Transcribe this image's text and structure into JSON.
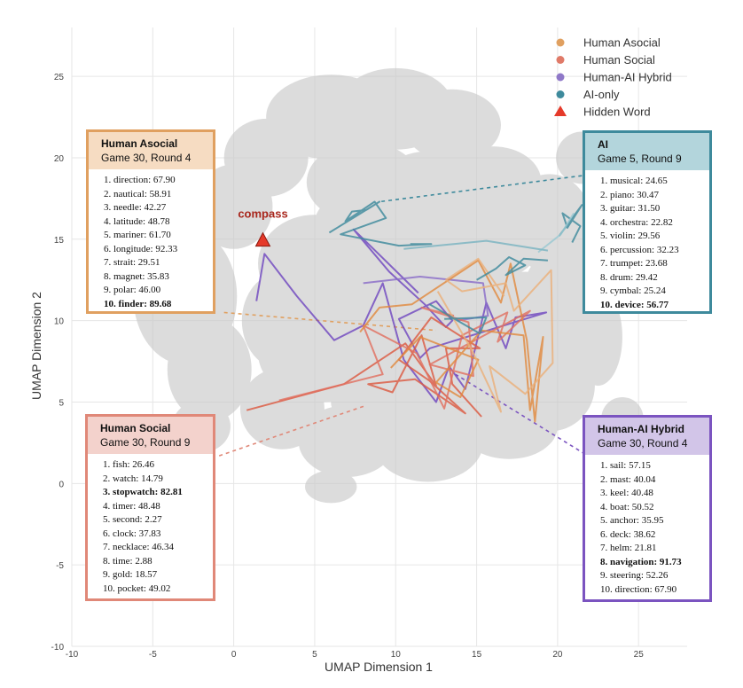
{
  "chart_data": {
    "type": "line",
    "xlabel": "UMAP Dimension 1",
    "ylabel": "UMAP Dimension 2",
    "xlim": [
      -10,
      28
    ],
    "ylim": [
      -10,
      28
    ],
    "x_ticks": [
      -10,
      -5,
      0,
      5,
      10,
      15,
      20,
      25
    ],
    "y_ticks": [
      -10,
      -5,
      0,
      5,
      10,
      15,
      20,
      25
    ],
    "grid": true,
    "legend_position": "top-right",
    "legend": [
      {
        "label": "Human Asocial",
        "color": "#e0a060",
        "marker": "circle"
      },
      {
        "label": "Human Social",
        "color": "#e07a68",
        "marker": "circle"
      },
      {
        "label": "Human-AI Hybrid",
        "color": "#8f78c8",
        "marker": "circle"
      },
      {
        "label": "AI-only",
        "color": "#3e8a9c",
        "marker": "circle"
      },
      {
        "label": "Hidden Word",
        "color": "#e53a2a",
        "marker": "triangle"
      }
    ],
    "hidden_word": {
      "label": "compass",
      "x": 1.8,
      "y": 14.9
    },
    "series": [
      {
        "group": "hybrid",
        "color": "#7048c0",
        "points": [
          [
            1.4,
            11.2
          ],
          [
            1.9,
            14.1
          ],
          [
            3.9,
            11.5
          ],
          [
            6.2,
            8.8
          ],
          [
            8,
            9.7
          ],
          [
            9.2,
            12.3
          ],
          [
            10.5,
            7.6
          ],
          [
            12.5,
            5
          ],
          [
            13.3,
            7.2
          ],
          [
            14.3,
            5.8
          ],
          [
            15.6,
            11.1
          ],
          [
            16.8,
            8.3
          ],
          [
            17.4,
            10.2
          ],
          [
            19.3,
            10.5
          ],
          [
            12.1,
            8.3
          ],
          [
            11.5,
            7.7
          ],
          [
            10.2,
            10.1
          ],
          [
            12.5,
            11.2
          ],
          [
            13.5,
            10
          ],
          [
            13.1,
            9.6
          ],
          [
            11.8,
            11
          ],
          [
            9.6,
            13
          ],
          [
            7.4,
            15.6
          ],
          [
            11.4,
            11.7
          ]
        ]
      },
      {
        "group": "hybrid",
        "color": "#8a6cc8",
        "points": [
          [
            8,
            12.3
          ],
          [
            11.5,
            12.7
          ],
          [
            15.4,
            12.3
          ],
          [
            15.7,
            10.3
          ],
          [
            13.8,
            10
          ]
        ]
      },
      {
        "group": "social",
        "color": "#dc5a42",
        "points": [
          [
            0.8,
            4.5
          ],
          [
            6.8,
            6.1
          ],
          [
            10.6,
            8.6
          ],
          [
            12.5,
            6
          ],
          [
            11.6,
            9.1
          ],
          [
            9.8,
            5.6
          ],
          [
            8.3,
            6.1
          ],
          [
            11.2,
            6.4
          ],
          [
            14.3,
            4.3
          ],
          [
            12.1,
            6.3
          ],
          [
            10.2,
            7.6
          ],
          [
            12.2,
            10.2
          ],
          [
            15.2,
            8.3
          ],
          [
            13.1,
            8.3
          ],
          [
            13.5,
            6.1
          ],
          [
            15.3,
            4.1
          ]
        ]
      },
      {
        "group": "social",
        "color": "#e07060",
        "points": [
          [
            2.8,
            5.1
          ],
          [
            9.2,
            6.7
          ],
          [
            8,
            9.7
          ],
          [
            11.3,
            8
          ],
          [
            13,
            4.6
          ],
          [
            14.1,
            9.1
          ],
          [
            16.9,
            10.5
          ],
          [
            16.3,
            8.7
          ],
          [
            18.3,
            10.6
          ],
          [
            12.1,
            7.3
          ],
          [
            14.8,
            6.6
          ],
          [
            14.5,
            9.9
          ],
          [
            11.6,
            10.8
          ],
          [
            13.6,
            10.3
          ]
        ]
      },
      {
        "group": "asocial",
        "color": "#e08a40",
        "points": [
          [
            7.8,
            9.3
          ],
          [
            9,
            10.8
          ],
          [
            11,
            11
          ],
          [
            15.1,
            13.7
          ],
          [
            16.5,
            11.1
          ],
          [
            17.1,
            13.5
          ],
          [
            18.1,
            8.8
          ],
          [
            18.6,
            3.8
          ],
          [
            19.1,
            9
          ],
          [
            18.3,
            4.5
          ],
          [
            17.9,
            9.1
          ],
          [
            15.3,
            9.4
          ],
          [
            12.5,
            6.2
          ],
          [
            14,
            5.3
          ],
          [
            15.1,
            7.6
          ],
          [
            11.5,
            9
          ],
          [
            9.7,
            7.1
          ]
        ]
      },
      {
        "group": "asocial",
        "color": "#eab07a",
        "points": [
          [
            12.6,
            11.8
          ],
          [
            14.7,
            8.2
          ],
          [
            16.5,
            4.4
          ],
          [
            15.8,
            7.2
          ],
          [
            18,
            5.5
          ],
          [
            19.7,
            7.4
          ],
          [
            19.6,
            13.1
          ],
          [
            17.3,
            10.6
          ],
          [
            16.8,
            12.3
          ],
          [
            14.1,
            11.8
          ],
          [
            13.1,
            12.5
          ],
          [
            15.1,
            13.8
          ],
          [
            16.7,
            11.5
          ]
        ]
      },
      {
        "group": "ai",
        "color": "#3e8a9c",
        "points": [
          [
            5.9,
            15.4
          ],
          [
            9,
            17.3
          ],
          [
            8.2,
            16.8
          ],
          [
            7.3,
            16.7
          ],
          [
            6.9,
            16.1
          ],
          [
            8.7,
            17.3
          ],
          [
            9.4,
            16.3
          ],
          [
            6.6,
            15.3
          ],
          [
            10.2,
            14.6
          ],
          [
            12.2,
            14.7
          ],
          [
            10.9,
            14.7
          ]
        ]
      },
      {
        "group": "ai",
        "color": "#3e8a9c",
        "points": [
          [
            15,
            12.5
          ],
          [
            16.2,
            13.2
          ],
          [
            17,
            13.9
          ],
          [
            18,
            13.4
          ],
          [
            16.8,
            12.8
          ],
          [
            17.9,
            13.8
          ],
          [
            19.4,
            13.7
          ]
        ]
      },
      {
        "group": "ai",
        "color": "#3e8a9c",
        "points": [
          [
            13,
            10.1
          ],
          [
            15.6,
            10.2
          ],
          [
            15.2,
            9.2
          ],
          [
            12.1,
            11
          ]
        ]
      },
      {
        "group": "ai",
        "color": "#3e8a9c",
        "points": [
          [
            20.1,
            15.2
          ],
          [
            21.5,
            17.1
          ],
          [
            20.6,
            15.7
          ],
          [
            20.3,
            16.6
          ],
          [
            21.4,
            15.8
          ],
          [
            20.9,
            14.8
          ]
        ]
      },
      {
        "group": "ai",
        "color": "#9ac8d2",
        "points": [
          [
            18.8,
            14.2
          ],
          [
            20.2,
            15.3
          ],
          [
            21,
            16.6
          ]
        ]
      },
      {
        "group": "ai",
        "color": "#7ab3c1",
        "points": [
          [
            10.5,
            14.4
          ],
          [
            15.6,
            14.9
          ],
          [
            19.4,
            14.3
          ]
        ]
      }
    ],
    "callouts": [
      {
        "id": "asocial",
        "title": "Human Asocial",
        "subtitle": "Game 30, Round 4",
        "border": "#e0a060",
        "header_bg": "#f6dcc2",
        "leader": {
          "from": [
            -0.6,
            10.5
          ],
          "to": [
            12.5,
            9.4
          ]
        },
        "items": [
          {
            "rank": "1.",
            "word": "direction",
            "score": "67.90",
            "bold": false
          },
          {
            "rank": "2.",
            "word": "nautical",
            "score": "58.91",
            "bold": false
          },
          {
            "rank": "3.",
            "word": "needle",
            "score": "42.27",
            "bold": false
          },
          {
            "rank": "4.",
            "word": "latitude",
            "score": "48.78",
            "bold": false
          },
          {
            "rank": "5.",
            "word": "mariner",
            "score": "61.70",
            "bold": false
          },
          {
            "rank": "6.",
            "word": "longitude",
            "score": "92.33",
            "bold": false
          },
          {
            "rank": "7.",
            "word": "strait",
            "score": "29.51",
            "bold": false
          },
          {
            "rank": "8.",
            "word": "magnet",
            "score": "35.83",
            "bold": false
          },
          {
            "rank": "9.",
            "word": "polar",
            "score": "46.00",
            "bold": false
          },
          {
            "rank": "10.",
            "word": "finder",
            "score": "89.68",
            "bold": true
          }
        ]
      },
      {
        "id": "social",
        "title": "Human Social",
        "subtitle": "Game 30, Round 9",
        "border": "#e08878",
        "header_bg": "#f3d2cc",
        "leader": {
          "from": [
            -0.9,
            1.7
          ],
          "to": [
            8.2,
            4.8
          ]
        },
        "items": [
          {
            "rank": "1.",
            "word": "fish",
            "score": "26.46",
            "bold": false
          },
          {
            "rank": "2.",
            "word": "watch",
            "score": "14.79",
            "bold": false
          },
          {
            "rank": "3.",
            "word": "stopwatch",
            "score": "82.81",
            "bold": true
          },
          {
            "rank": "4.",
            "word": "timer",
            "score": "48.48",
            "bold": false
          },
          {
            "rank": "5.",
            "word": "second",
            "score": "2.27",
            "bold": false
          },
          {
            "rank": "6.",
            "word": "clock",
            "score": "37.83",
            "bold": false
          },
          {
            "rank": "7.",
            "word": "necklace",
            "score": "46.34",
            "bold": false
          },
          {
            "rank": "8.",
            "word": "time",
            "score": "2.88",
            "bold": false
          },
          {
            "rank": "9.",
            "word": "gold",
            "score": "18.57",
            "bold": false
          },
          {
            "rank": "10.",
            "word": "pocket",
            "score": "49.02",
            "bold": false
          }
        ]
      },
      {
        "id": "ai",
        "title": "AI",
        "subtitle": "Game 5, Round 9",
        "border": "#3e8a9c",
        "header_bg": "#b3d5dc",
        "leader": {
          "from": [
            21.5,
            18.9
          ],
          "to": [
            9,
            17.3
          ]
        },
        "items": [
          {
            "rank": "1.",
            "word": "musical",
            "score": "24.65",
            "bold": false
          },
          {
            "rank": "2.",
            "word": "piano",
            "score": "30.47",
            "bold": false
          },
          {
            "rank": "3.",
            "word": "guitar",
            "score": "31.50",
            "bold": false
          },
          {
            "rank": "4.",
            "word": "orchestra",
            "score": "22.82",
            "bold": false
          },
          {
            "rank": "5.",
            "word": "violin",
            "score": "29.56",
            "bold": false
          },
          {
            "rank": "6.",
            "word": "percussion",
            "score": "32.23",
            "bold": false
          },
          {
            "rank": "7.",
            "word": "trumpet",
            "score": "23.68",
            "bold": false
          },
          {
            "rank": "8.",
            "word": "drum",
            "score": "29.42",
            "bold": false
          },
          {
            "rank": "9.",
            "word": "cymbal",
            "score": "25.24",
            "bold": false
          },
          {
            "rank": "10.",
            "word": "device",
            "score": "56.77",
            "bold": true
          }
        ]
      },
      {
        "id": "hybrid",
        "title": "Human-AI Hybrid",
        "subtitle": "Game 30, Round 4",
        "border": "#7b54c0",
        "header_bg": "#d2c5e8",
        "leader": {
          "from": [
            21.7,
            1.8
          ],
          "to": [
            13.7,
            6.7
          ]
        },
        "items": [
          {
            "rank": "1.",
            "word": "sail",
            "score": "57.15",
            "bold": false
          },
          {
            "rank": "2.",
            "word": "mast",
            "score": "40.04",
            "bold": false
          },
          {
            "rank": "3.",
            "word": "keel",
            "score": "40.48",
            "bold": false
          },
          {
            "rank": "4.",
            "word": "boat",
            "score": "50.52",
            "bold": false
          },
          {
            "rank": "5.",
            "word": "anchor",
            "score": "35.95",
            "bold": false
          },
          {
            "rank": "6.",
            "word": "deck",
            "score": "38.62",
            "bold": false
          },
          {
            "rank": "7.",
            "word": "helm",
            "score": "21.81",
            "bold": false
          },
          {
            "rank": "8.",
            "word": "navigation",
            "score": "91.73",
            "bold": true
          },
          {
            "rank": "9.",
            "word": "steering",
            "score": "52.26",
            "bold": false
          },
          {
            "rank": "10.",
            "word": "direction",
            "score": "67.90",
            "bold": false
          }
        ]
      }
    ]
  }
}
